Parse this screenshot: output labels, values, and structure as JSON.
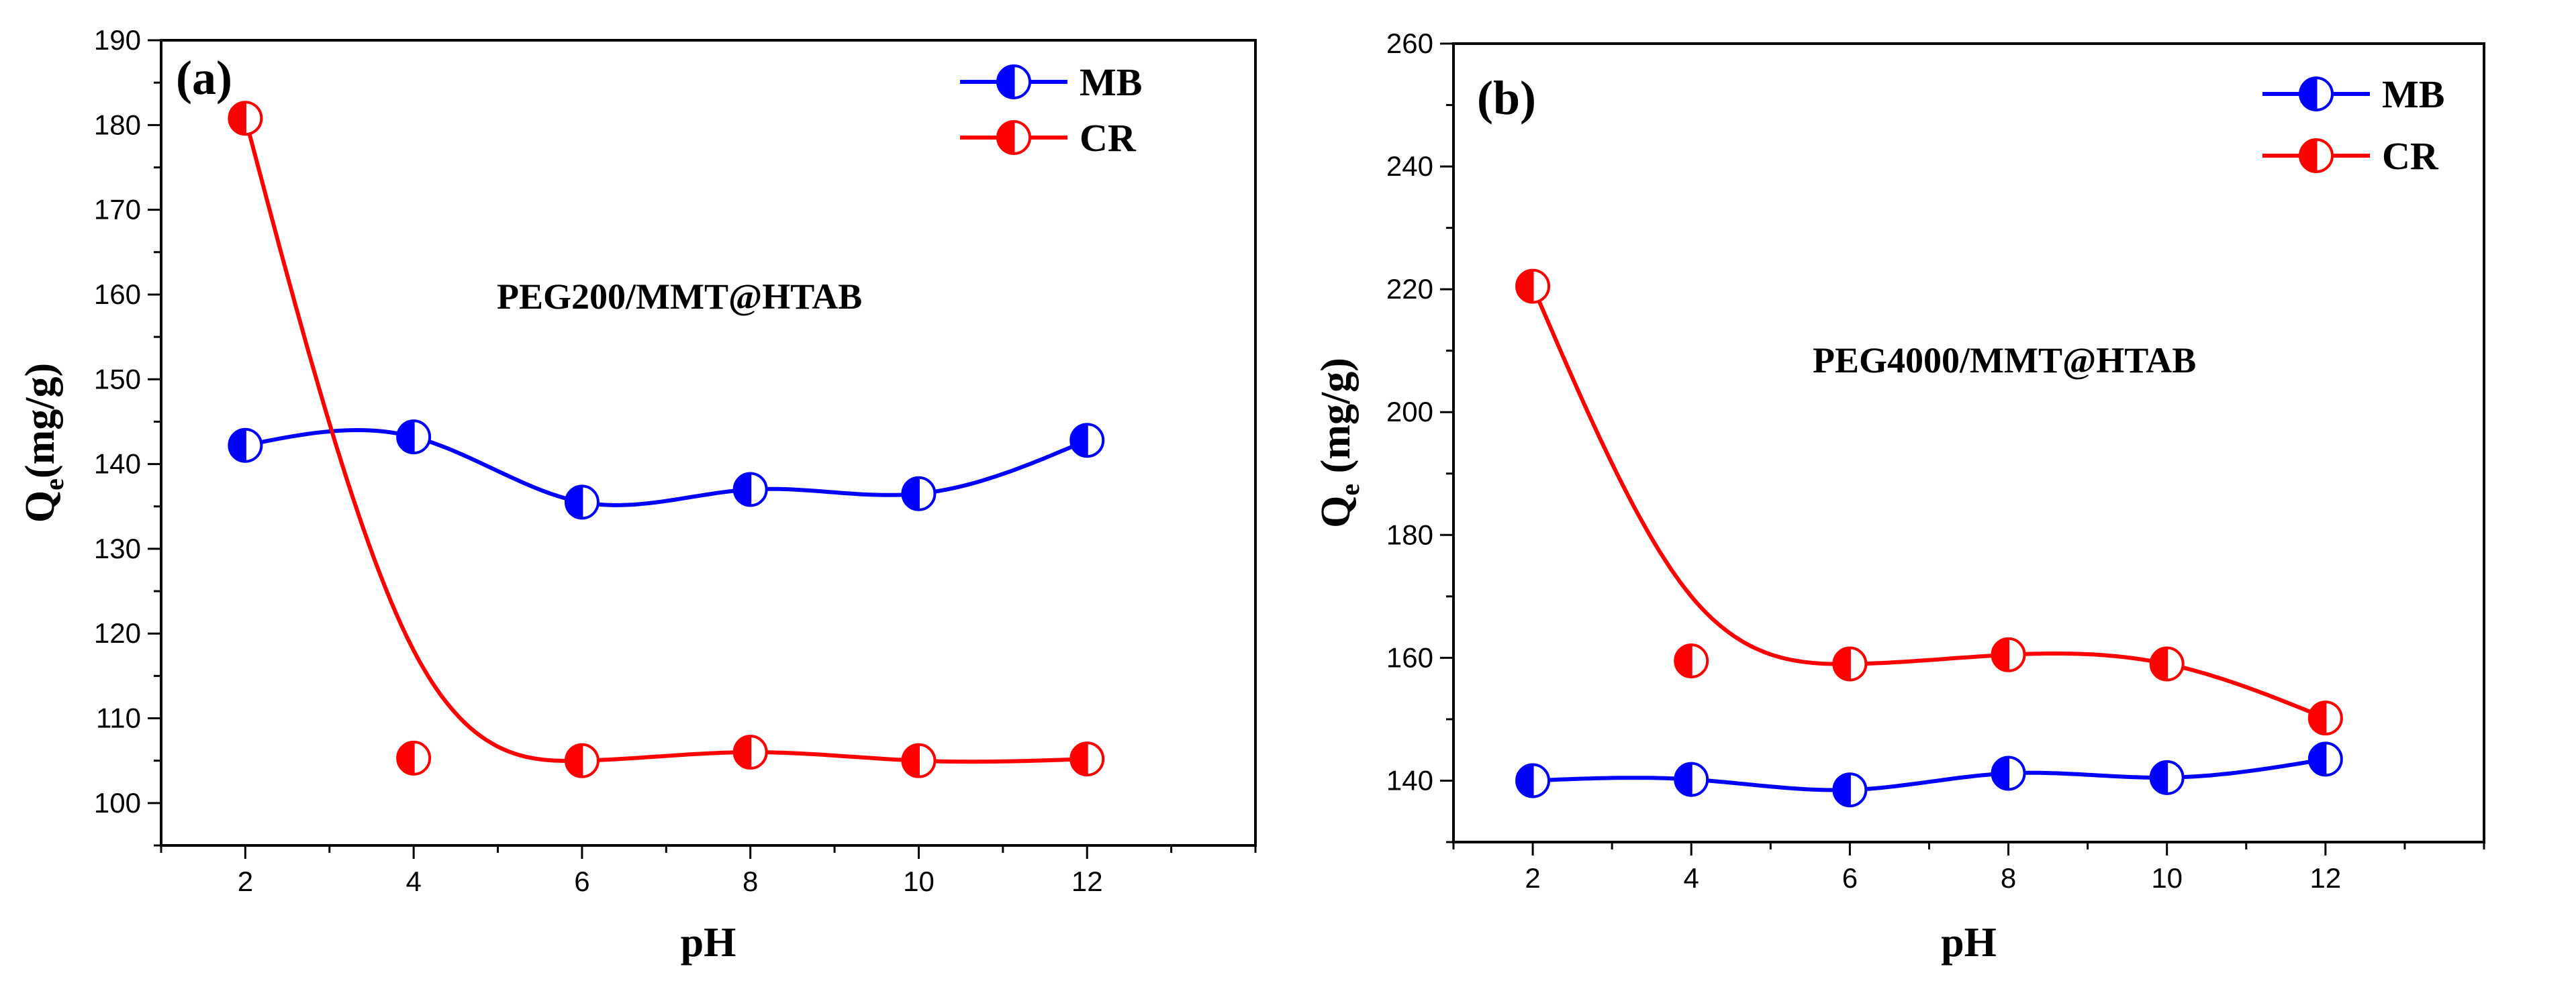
{
  "chart_data": [
    {
      "type": "line",
      "panel": "(a)",
      "title": "",
      "annotation": "PEG200/MMT@HTAB",
      "xlabel": "pH",
      "ylabel_main": "Q",
      "ylabel_sub": "e",
      "ylabel_tail": "(mg/g)",
      "xlim": [
        1,
        14
      ],
      "ylim": [
        95,
        190
      ],
      "xticks": [
        2,
        4,
        6,
        8,
        10,
        12
      ],
      "yticks": [
        100,
        110,
        120,
        130,
        140,
        150,
        160,
        170,
        180,
        190
      ],
      "legend_position": "top-right",
      "series": [
        {
          "name": "MB",
          "color": "#0000ff",
          "x": [
            2,
            4,
            6,
            8,
            10,
            12
          ],
          "values": [
            142.2,
            143.2,
            135.5,
            137.0,
            136.5,
            142.8
          ]
        },
        {
          "name": "CR",
          "color": "#ff0000",
          "x": [
            2,
            4,
            6,
            8,
            10,
            12
          ],
          "values": [
            180.8,
            105.3,
            105.0,
            106.0,
            105.0,
            105.2
          ]
        }
      ]
    },
    {
      "type": "line",
      "panel": "(b)",
      "title": "",
      "annotation": "PEG4000/MMT@HTAB",
      "xlabel": "pH",
      "ylabel_main": "Q",
      "ylabel_sub": "e",
      "ylabel_tail": " (mg/g)",
      "xlim": [
        1,
        14
      ],
      "ylim": [
        130,
        260
      ],
      "xticks": [
        2,
        4,
        6,
        8,
        10,
        12
      ],
      "yticks": [
        140,
        160,
        180,
        200,
        220,
        240,
        260
      ],
      "legend_position": "top-right",
      "series": [
        {
          "name": "MB",
          "color": "#0000ff",
          "x": [
            2,
            4,
            6,
            8,
            10,
            12
          ],
          "values": [
            140.0,
            140.2,
            138.5,
            141.2,
            140.5,
            143.5
          ]
        },
        {
          "name": "CR",
          "color": "#ff0000",
          "x": [
            2,
            4,
            6,
            8,
            10,
            12
          ],
          "values": [
            220.5,
            159.5,
            159.0,
            160.5,
            159.0,
            150.2
          ]
        }
      ]
    }
  ]
}
